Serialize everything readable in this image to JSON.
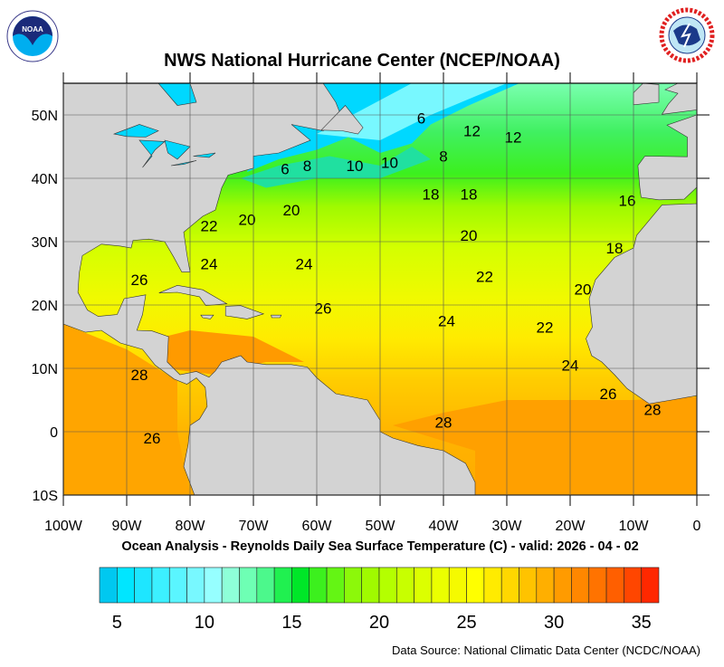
{
  "header": {
    "title": "NWS National Hurricane Center (NCEP/NOAA)"
  },
  "logos": {
    "left": "NOAA",
    "right": "NATIONAL WEATHER SERVICE"
  },
  "map": {
    "subtitle": "Ocean Analysis - Reynolds Daily Sea Surface Temperature (C) - valid: 2026 - 04 - 02",
    "lon_ticks": [
      "100W",
      "90W",
      "80W",
      "70W",
      "60W",
      "50W",
      "40W",
      "30W",
      "20W",
      "10W",
      "0"
    ],
    "lat_ticks": [
      "50N",
      "40N",
      "30N",
      "20N",
      "10N",
      "0",
      "10S"
    ],
    "land_color": "#d3d3d3",
    "contour_labels": [
      {
        "value": "6",
        "lon": -43.5,
        "lat": 49.5
      },
      {
        "value": "8",
        "lon": -40,
        "lat": 43.5
      },
      {
        "value": "12",
        "lon": -35.5,
        "lat": 47.5
      },
      {
        "value": "12",
        "lon": -29,
        "lat": 46.5
      },
      {
        "value": "6",
        "lon": -65,
        "lat": 41.5
      },
      {
        "value": "8",
        "lon": -61.5,
        "lat": 42
      },
      {
        "value": "10",
        "lon": -54,
        "lat": 42
      },
      {
        "value": "10",
        "lon": -48.5,
        "lat": 42.5
      },
      {
        "value": "18",
        "lon": -42,
        "lat": 37.5
      },
      {
        "value": "18",
        "lon": -36,
        "lat": 37.5
      },
      {
        "value": "16",
        "lon": -11,
        "lat": 36.5
      },
      {
        "value": "22",
        "lon": -77,
        "lat": 32.5
      },
      {
        "value": "20",
        "lon": -71,
        "lat": 33.5
      },
      {
        "value": "20",
        "lon": -64,
        "lat": 35
      },
      {
        "value": "20",
        "lon": -36,
        "lat": 31
      },
      {
        "value": "18",
        "lon": -13,
        "lat": 29
      },
      {
        "value": "24",
        "lon": -77,
        "lat": 26.5
      },
      {
        "value": "24",
        "lon": -62,
        "lat": 26.5
      },
      {
        "value": "26",
        "lon": -88,
        "lat": 24
      },
      {
        "value": "22",
        "lon": -33.5,
        "lat": 24.5
      },
      {
        "value": "20",
        "lon": -18,
        "lat": 22.5
      },
      {
        "value": "26",
        "lon": -59,
        "lat": 19.5
      },
      {
        "value": "24",
        "lon": -39.5,
        "lat": 17.5
      },
      {
        "value": "22",
        "lon": -24,
        "lat": 16.5
      },
      {
        "value": "24",
        "lon": -20,
        "lat": 10.5
      },
      {
        "value": "28",
        "lon": -88,
        "lat": 9
      },
      {
        "value": "26",
        "lon": -14,
        "lat": 6
      },
      {
        "value": "28",
        "lon": -7,
        "lat": 3.5
      },
      {
        "value": "28",
        "lon": -40,
        "lat": 1.5
      },
      {
        "value": "26",
        "lon": -86,
        "lat": -1
      }
    ]
  },
  "colorbar": {
    "min": 4,
    "max": 36,
    "tick_labels": [
      "5",
      "10",
      "15",
      "20",
      "25",
      "30",
      "35"
    ],
    "colors": [
      "#00c8f0",
      "#00e6ff",
      "#1ee6ff",
      "#3cf0ff",
      "#5af5ff",
      "#78f8ff",
      "#96ffff",
      "#8effd8",
      "#6effb4",
      "#4cf88c",
      "#20f050",
      "#00e628",
      "#3cf01e",
      "#64f514",
      "#8cf80a",
      "#a0fa00",
      "#b4ff00",
      "#c8ff00",
      "#dcff00",
      "#ebff00",
      "#f5fa00",
      "#ffff00",
      "#ffeb00",
      "#ffd700",
      "#ffc300",
      "#ffaf00",
      "#ff9b00",
      "#ff8700",
      "#ff7300",
      "#ff5f00",
      "#ff4600",
      "#ff2800"
    ]
  },
  "footer": {
    "source": "Data Source: National Climatic Data Center (NCDC/NOAA)"
  }
}
